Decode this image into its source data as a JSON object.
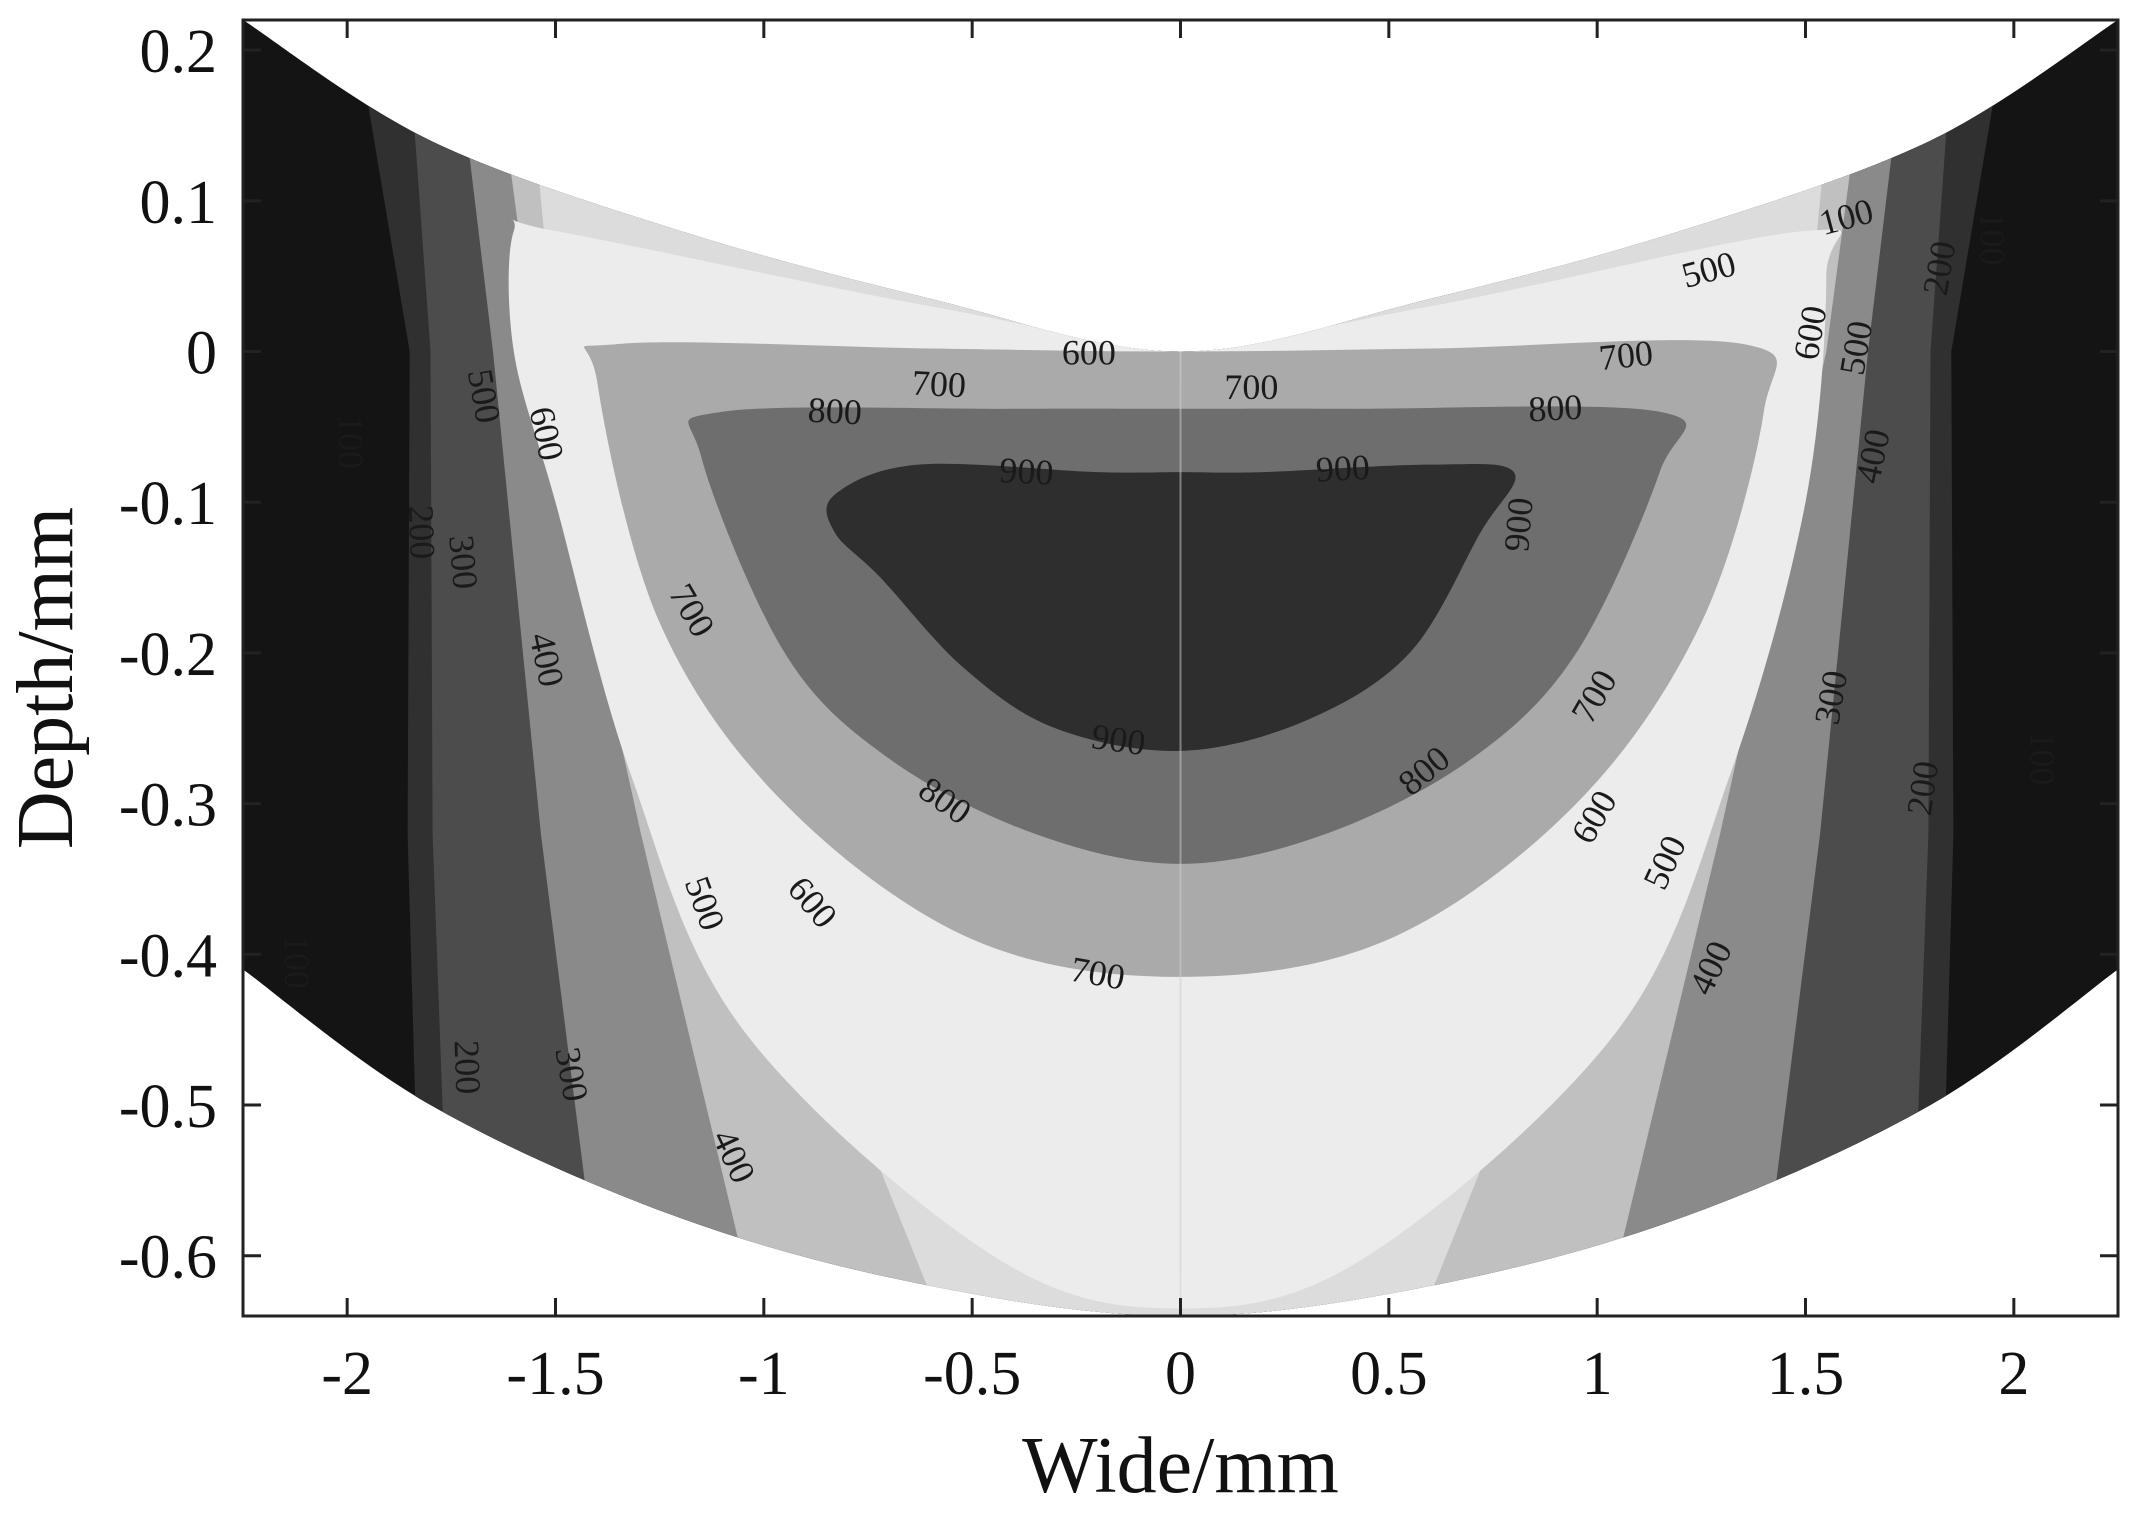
{
  "chart_data": {
    "type": "heatmap",
    "subtype": "filled-contour",
    "title": "",
    "xlabel": "Wide/mm",
    "ylabel": "Depth/mm",
    "xlim": [
      -2.25,
      2.25
    ],
    "ylim": [
      -0.64,
      0.22
    ],
    "xticks": [
      -2,
      -1.5,
      -1,
      -0.5,
      0,
      0.5,
      1,
      1.5,
      2
    ],
    "yticks": [
      0.2,
      0.1,
      0,
      -0.1,
      -0.2,
      -0.3,
      -0.4,
      -0.5,
      -0.6
    ],
    "xtick_labels": [
      "-2",
      "-1.5",
      "-1",
      "-0.5",
      "0",
      "0.5",
      "1",
      "1.5",
      "2"
    ],
    "ytick_labels": [
      "0.2",
      "0.1",
      "0",
      "-0.1",
      "-0.2",
      "-0.3",
      "-0.4",
      "-0.5",
      "-0.6"
    ],
    "grid": false,
    "legend": "none",
    "levels": [
      100,
      200,
      300,
      400,
      500,
      600,
      700,
      800,
      900
    ],
    "band_colors": [
      "#141414",
      "#303030",
      "#4c4c4c",
      "#8a8a8a",
      "#c0c0c0",
      "#dcdcdc",
      "#ececec",
      "#aaaaaa",
      "#6e6e6e",
      "#2e2e2e"
    ],
    "domain_boundary": {
      "top": [
        [
          -2.25,
          0.22
        ],
        [
          -1.8,
          0.14
        ],
        [
          -1.2,
          0.08
        ],
        [
          -0.6,
          0.035
        ],
        [
          0,
          0.0
        ],
        [
          0.6,
          0.035
        ],
        [
          1.2,
          0.08
        ],
        [
          1.8,
          0.14
        ],
        [
          2.25,
          0.22
        ]
      ],
      "bottom": [
        [
          -2.25,
          -0.41
        ],
        [
          -1.8,
          -0.5
        ],
        [
          -1.2,
          -0.575
        ],
        [
          -0.6,
          -0.62
        ],
        [
          0,
          -0.64
        ],
        [
          0.6,
          -0.62
        ],
        [
          1.2,
          -0.575
        ],
        [
          1.8,
          -0.5
        ],
        [
          2.25,
          -0.41
        ]
      ]
    },
    "contours": [
      {
        "level": 900,
        "points": [
          [
            -0.83,
            -0.095
          ],
          [
            -0.63,
            -0.075
          ],
          [
            -0.2,
            -0.08
          ],
          [
            0,
            -0.08
          ],
          [
            0.2,
            -0.08
          ],
          [
            0.6,
            -0.075
          ],
          [
            0.8,
            -0.08
          ],
          [
            0.72,
            -0.12
          ],
          [
            0.55,
            -0.2
          ],
          [
            0.3,
            -0.245
          ],
          [
            0,
            -0.265
          ],
          [
            -0.3,
            -0.25
          ],
          [
            -0.52,
            -0.21
          ],
          [
            -0.72,
            -0.15
          ],
          [
            -0.83,
            -0.12
          ]
        ]
      },
      {
        "level": 800,
        "points": [
          [
            -1.15,
            -0.07
          ],
          [
            -1.1,
            -0.04
          ],
          [
            -0.4,
            -0.038
          ],
          [
            0,
            -0.038
          ],
          [
            0.4,
            -0.038
          ],
          [
            1.15,
            -0.04
          ],
          [
            1.15,
            -0.08
          ],
          [
            0.95,
            -0.2
          ],
          [
            0.7,
            -0.27
          ],
          [
            0.35,
            -0.32
          ],
          [
            0,
            -0.34
          ],
          [
            -0.35,
            -0.32
          ],
          [
            -0.7,
            -0.27
          ],
          [
            -0.95,
            -0.2
          ]
        ]
      },
      {
        "level": 700,
        "points": [
          [
            -1.4,
            -0.02
          ],
          [
            -1.35,
            0.005
          ],
          [
            -0.6,
            0.002
          ],
          [
            0,
            0.0
          ],
          [
            0.6,
            0.002
          ],
          [
            1.35,
            0.005
          ],
          [
            1.4,
            -0.04
          ],
          [
            1.25,
            -0.18
          ],
          [
            0.95,
            -0.3
          ],
          [
            0.5,
            -0.39
          ],
          [
            0,
            -0.415
          ],
          [
            -0.5,
            -0.39
          ],
          [
            -0.95,
            -0.3
          ],
          [
            -1.25,
            -0.18
          ]
        ]
      },
      {
        "level": 600,
        "points": [
          [
            -1.6,
            0.08
          ],
          [
            -1.5,
            0.08
          ],
          [
            -0.6,
            0.03
          ],
          [
            0,
            0.005
          ],
          [
            0.6,
            0.03
          ],
          [
            1.5,
            0.08
          ],
          [
            1.55,
            0.05
          ],
          [
            1.5,
            -0.1
          ],
          [
            1.32,
            -0.28
          ],
          [
            1.05,
            -0.45
          ],
          [
            0.45,
            -0.6
          ],
          [
            0,
            -0.635
          ],
          [
            -0.45,
            -0.6
          ],
          [
            -1.05,
            -0.45
          ],
          [
            -1.32,
            -0.28
          ],
          [
            -1.5,
            -0.1
          ],
          [
            -1.6,
            0.0
          ]
        ]
      }
    ],
    "contour_labels": [
      {
        "text": "100",
        "x": 1.6,
        "y": 0.087,
        "angle": -15
      },
      {
        "text": "500",
        "x": 1.27,
        "y": 0.052,
        "angle": -15
      },
      {
        "text": "200",
        "x": 1.83,
        "y": 0.055,
        "angle": -80
      },
      {
        "text": "100",
        "x": 1.94,
        "y": 0.075,
        "angle": 90
      },
      {
        "text": "600",
        "x": 1.52,
        "y": 0.012,
        "angle": -80
      },
      {
        "text": "500",
        "x": 1.63,
        "y": 0.002,
        "angle": -80
      },
      {
        "text": "400",
        "x": 1.67,
        "y": -0.07,
        "angle": -78
      },
      {
        "text": "700",
        "x": 1.07,
        "y": -0.005,
        "angle": -6
      },
      {
        "text": "800",
        "x": 0.9,
        "y": -0.04,
        "angle": -3
      },
      {
        "text": "900",
        "x": 0.39,
        "y": -0.08,
        "angle": -3
      },
      {
        "text": "600",
        "x": -0.22,
        "y": -0.003,
        "angle": 0
      },
      {
        "text": "700",
        "x": -0.58,
        "y": -0.024,
        "angle": 3
      },
      {
        "text": "700",
        "x": 0.17,
        "y": -0.026,
        "angle": 0
      },
      {
        "text": "800",
        "x": -0.83,
        "y": -0.042,
        "angle": 3
      },
      {
        "text": "900",
        "x": -0.37,
        "y": -0.082,
        "angle": 3
      },
      {
        "text": "900",
        "x": 0.82,
        "y": -0.115,
        "angle": -85
      },
      {
        "text": "500",
        "x": -1.68,
        "y": -0.03,
        "angle": 80
      },
      {
        "text": "600",
        "x": -1.53,
        "y": -0.055,
        "angle": 78
      },
      {
        "text": "100",
        "x": -2.0,
        "y": -0.06,
        "angle": 90
      },
      {
        "text": "200",
        "x": -1.83,
        "y": -0.12,
        "angle": 88
      },
      {
        "text": "300",
        "x": -1.73,
        "y": -0.14,
        "angle": 85
      },
      {
        "text": "700",
        "x": -1.18,
        "y": -0.173,
        "angle": 60
      },
      {
        "text": "400",
        "x": -1.53,
        "y": -0.205,
        "angle": 78
      },
      {
        "text": "900",
        "x": -0.15,
        "y": -0.26,
        "angle": 8
      },
      {
        "text": "800",
        "x": -0.57,
        "y": -0.3,
        "angle": 35
      },
      {
        "text": "800",
        "x": 0.59,
        "y": -0.28,
        "angle": -40
      },
      {
        "text": "700",
        "x": 1.0,
        "y": -0.23,
        "angle": -60
      },
      {
        "text": "300",
        "x": 1.57,
        "y": -0.23,
        "angle": -80
      },
      {
        "text": "100",
        "x": 2.06,
        "y": -0.27,
        "angle": 90
      },
      {
        "text": "200",
        "x": 1.79,
        "y": -0.29,
        "angle": -82
      },
      {
        "text": "600",
        "x": 1.0,
        "y": -0.31,
        "angle": -60
      },
      {
        "text": "500",
        "x": 1.17,
        "y": -0.34,
        "angle": -65
      },
      {
        "text": "500",
        "x": -1.15,
        "y": -0.367,
        "angle": 70
      },
      {
        "text": "600",
        "x": -0.89,
        "y": -0.367,
        "angle": 50
      },
      {
        "text": "400",
        "x": 1.28,
        "y": -0.41,
        "angle": -65
      },
      {
        "text": "700",
        "x": -0.2,
        "y": -0.415,
        "angle": 10
      },
      {
        "text": "100",
        "x": -2.13,
        "y": -0.405,
        "angle": 90
      },
      {
        "text": "200",
        "x": -1.72,
        "y": -0.475,
        "angle": 88
      },
      {
        "text": "300",
        "x": -1.47,
        "y": -0.48,
        "angle": 80
      },
      {
        "text": "400",
        "x": -1.08,
        "y": -0.535,
        "angle": 65
      }
    ]
  }
}
